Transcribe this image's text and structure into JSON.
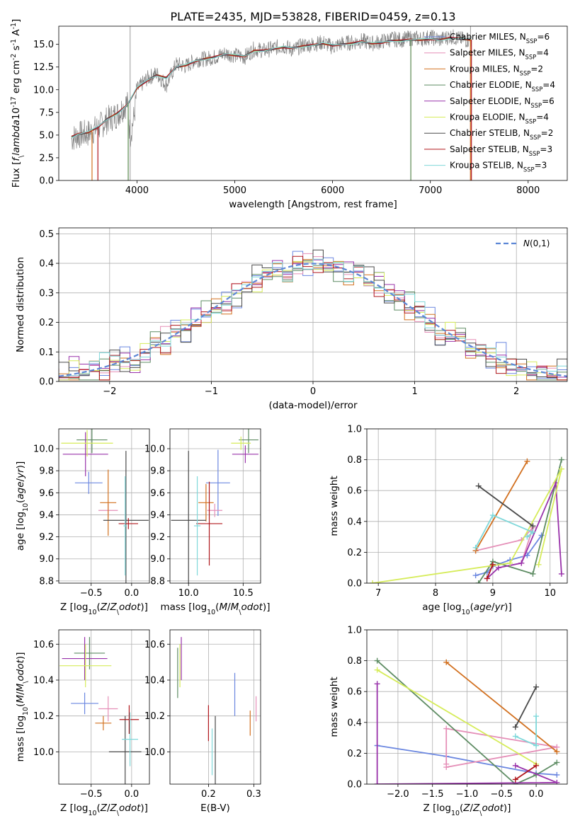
{
  "figure": {
    "title": "PLATE=2435, MJD=53828, FIBERID=0459, z=0.13"
  },
  "models": [
    {
      "label": "Chabrier MILES, N$_{SSP}$=6",
      "color": "#6b87e0"
    },
    {
      "label": "Salpeter MILES, N$_{SSP}$=4",
      "color": "#e58fb8"
    },
    {
      "label": "Kroupa MILES, N$_{SSP}$=2",
      "color": "#d2701f"
    },
    {
      "label": "Chabrier ELODIE, N$_{SSP}$=4",
      "color": "#5e8c63"
    },
    {
      "label": "Salpeter ELODIE, N$_{SSP}$=6",
      "color": "#9932aa"
    },
    {
      "label": "Kroupa ELODIE, N$_{SSP}$=4",
      "color": "#d6ec5a"
    },
    {
      "label": "Chabrier STELIB, N$_{SSP}$=2",
      "color": "#4a4a4a"
    },
    {
      "label": "Salpeter STELIB, N$_{SSP}$=3",
      "color": "#b0171c"
    },
    {
      "label": "Kroupa STELIB, N$_{SSP}$=3",
      "color": "#7fd8da"
    }
  ],
  "chart_data": [
    {
      "id": "spectrum",
      "type": "line",
      "xlabel": "wavelength [Angstrom, rest frame]",
      "ylabel": "Flux [$f_\\lambda$$10^{-17}$ erg cm$^{-2}$ s$^{-1}$ A$^{-1}$]",
      "xlim": [
        3200,
        8400
      ],
      "ylim": [
        0,
        17
      ],
      "xticks": [
        4000,
        5000,
        6000,
        7000,
        8000
      ],
      "yticks": [
        0.0,
        2.5,
        5.0,
        7.5,
        10.0,
        12.5,
        15.0
      ],
      "grid": false,
      "legend": "top-right",
      "observed_color": "#808080",
      "observed": {
        "x": [
          3330,
          3400,
          3500,
          3600,
          3700,
          3800,
          3900,
          3930,
          3970,
          4000,
          4100,
          4200,
          4300,
          4400,
          4500,
          4600,
          4700,
          4800,
          4900,
          5000,
          5100,
          5200,
          5300,
          5400,
          5500,
          5600,
          5700,
          5800,
          5900,
          6000,
          6100,
          6200,
          6300,
          6400,
          6500,
          6600,
          6700,
          6800,
          6900,
          7000,
          7100,
          7200,
          7300,
          7420
        ],
        "y": [
          4.6,
          5.0,
          5.2,
          5.8,
          6.7,
          7.3,
          8.6,
          5.0,
          7.0,
          10.0,
          11.2,
          11.8,
          10.5,
          12.8,
          12.6,
          13.3,
          13.4,
          13.6,
          14.0,
          13.8,
          13.6,
          14.5,
          14.3,
          14.6,
          14.8,
          14.4,
          14.9,
          15.0,
          15.2,
          14.7,
          15.1,
          15.2,
          15.4,
          15.1,
          15.3,
          15.6,
          15.5,
          15.7,
          15.6,
          15.8,
          15.5,
          15.9,
          15.6,
          15.4
        ]
      },
      "model_curve": {
        "x": [
          3330,
          3400,
          3500,
          3600,
          3700,
          3800,
          3900,
          4000,
          4100,
          4200,
          4300,
          4400,
          4500,
          4600,
          4700,
          4800,
          4900,
          5000,
          5100,
          5200,
          5300,
          5400,
          5500,
          5600,
          5700,
          5800,
          5900,
          6000,
          6100,
          6200,
          6300,
          6400,
          6500,
          6600,
          6700,
          6800,
          6900,
          7000,
          7100,
          7200,
          7300,
          7420
        ],
        "y": [
          4.8,
          5.1,
          5.3,
          5.9,
          6.8,
          7.4,
          8.3,
          10.2,
          11.0,
          11.6,
          11.3,
          12.5,
          12.7,
          13.2,
          13.4,
          13.6,
          13.9,
          13.8,
          13.7,
          14.3,
          14.3,
          14.5,
          14.7,
          14.6,
          14.8,
          14.9,
          15.1,
          14.9,
          15.0,
          15.1,
          15.3,
          15.1,
          15.2,
          15.4,
          15.4,
          15.5,
          15.5,
          15.6,
          15.5,
          15.7,
          15.6,
          15.5
        ]
      },
      "curve_offsets": [
        0.05,
        -0.05,
        0.1,
        -0.1,
        0.0,
        0.08,
        -0.08,
        0.12,
        -0.12
      ],
      "range_limits": [
        {
          "model": "Salpeter STELIB, N$_{SSP}$=3",
          "x_start": 3600,
          "x_end": 7420
        },
        {
          "model": "Kroupa ELODIE, N$_{SSP}$=4",
          "x_start": 3910,
          "x_end": 6800
        },
        {
          "model": "Chabrier ELODIE, N$_{SSP}$=4",
          "x_start": 3910,
          "x_end": 6800
        },
        {
          "model": "Kroupa MILES, N$_{SSP}$=2",
          "x_start": 3540,
          "x_end": 7410
        }
      ]
    },
    {
      "id": "residuals",
      "type": "line",
      "xlabel": "(data-model)/error",
      "ylabel": "Normed distribution",
      "xlim": [
        -2.5,
        2.5
      ],
      "ylim": [
        0,
        0.52
      ],
      "xticks": [
        -2,
        -1,
        0,
        1,
        2
      ],
      "yticks": [
        0.0,
        0.1,
        0.2,
        0.3,
        0.4,
        0.5
      ],
      "grid": true,
      "legend": "top-right",
      "reference_label": "$\\mathcal{N}(0,1)$",
      "reference_color": "#5d87d6",
      "bin_width": 0.1,
      "histogram_perturbations": [
        0.02,
        -0.03,
        0.04,
        -0.02,
        0.03,
        -0.04,
        0.05,
        -0.01,
        0.02,
        -0.05,
        0.03,
        -0.02,
        0.06,
        -0.03,
        0.01,
        -0.04,
        0.02,
        0.04,
        -0.02,
        0.03,
        -0.01,
        0.05,
        -0.03,
        0.02,
        -0.06,
        0.01,
        0.03,
        -0.02,
        0.04,
        -0.01
      ]
    },
    {
      "id": "age-vs-Z",
      "type": "scatter",
      "xlabel": "Z [$\\log_{10}(Z/Z_\\odot)$]",
      "ylabel": "age  [$\\log_{10}(age/yr)$]",
      "xlim": [
        -0.9,
        0.22
      ],
      "ylim": [
        8.78,
        10.18
      ],
      "xticks": [
        -0.5,
        0.0
      ],
      "yticks": [
        8.8,
        9.0,
        9.2,
        9.4,
        9.6,
        9.8,
        10.0
      ],
      "grid": true,
      "points": [
        {
          "model": 0,
          "x": -0.53,
          "xerr": 0.17,
          "y": 9.69,
          "yerr": 0.1
        },
        {
          "model": 1,
          "x": -0.29,
          "xerr": 0.12,
          "y": 9.44,
          "yerr": 0.06
        },
        {
          "model": 2,
          "x": -0.29,
          "xerr": 0.1,
          "y": 9.51,
          "yerr": 0.3
        },
        {
          "model": 3,
          "x": -0.49,
          "xerr": 0.19,
          "y": 10.08,
          "yerr": 0.12
        },
        {
          "model": 4,
          "x": -0.57,
          "xerr": 0.28,
          "y": 9.95,
          "yerr": 0.2
        },
        {
          "model": 5,
          "x": -0.55,
          "xerr": 0.32,
          "y": 10.05,
          "yerr": 0.12
        },
        {
          "model": 6,
          "x": -0.07,
          "xerr": 0.28,
          "y": 9.35,
          "yerr": 0.63
        },
        {
          "model": 7,
          "x": -0.04,
          "xerr": 0.12,
          "y": 9.32,
          "yerr": 0.05
        },
        {
          "model": 8,
          "x": -0.08,
          "xerr": 0.02,
          "y": 9.3,
          "yerr": 0.45
        }
      ]
    },
    {
      "id": "age-vs-mass",
      "type": "scatter",
      "xlabel": "mass [$\\log_{10}(M/M_\\odot)$]",
      "ylabel": "",
      "xlim": [
        9.83,
        10.66
      ],
      "ylim": [
        8.78,
        10.18
      ],
      "xticks": [
        10.0,
        10.5
      ],
      "yticks": [
        8.8,
        9.0,
        9.2,
        9.4,
        9.6,
        9.8,
        10.0
      ],
      "grid": true,
      "points": [
        {
          "model": 0,
          "x": 10.27,
          "xerr": 0.11,
          "y": 9.69,
          "yerr": 0.3
        },
        {
          "model": 1,
          "x": 10.24,
          "xerr": 0.07,
          "y": 9.44,
          "yerr": 0.06
        },
        {
          "model": 2,
          "x": 10.16,
          "xerr": 0.07,
          "y": 9.51,
          "yerr": 0.17
        },
        {
          "model": 3,
          "x": 10.55,
          "xerr": 0.09,
          "y": 10.08,
          "yerr": 0.12
        },
        {
          "model": 4,
          "x": 10.52,
          "xerr": 0.12,
          "y": 9.95,
          "yerr": 0.08
        },
        {
          "model": 5,
          "x": 10.48,
          "xerr": 0.09,
          "y": 10.05,
          "yerr": 0.06
        },
        {
          "model": 6,
          "x": 10.0,
          "xerr": 0.16,
          "y": 9.35,
          "yerr": 0.63
        },
        {
          "model": 7,
          "x": 10.19,
          "xerr": 0.12,
          "y": 9.32,
          "yerr": 0.38
        },
        {
          "model": 8,
          "x": 10.08,
          "xerr": 0.03,
          "y": 9.3,
          "yerr": 0.45
        }
      ]
    },
    {
      "id": "weights-vs-age",
      "type": "line",
      "xlabel": "age  [$\\log_{10}(age/yr)$]",
      "ylabel": "mass weight",
      "xlim": [
        6.8,
        10.3
      ],
      "ylim": [
        0,
        1.0
      ],
      "xticks": [
        7,
        8,
        9,
        10
      ],
      "yticks": [
        0.0,
        0.2,
        0.4,
        0.6,
        0.8,
        1.0
      ],
      "grid": true,
      "series": [
        {
          "model": 0,
          "x": [
            8.7,
            8.9,
            9.0,
            9.3,
            9.6,
            9.85
          ],
          "y": [
            0.05,
            0.07,
            0.11,
            0.15,
            0.18,
            0.31
          ]
        },
        {
          "model": 1,
          "x": [
            8.7,
            9.5,
            9.7,
            9.5
          ],
          "y": [
            0.21,
            0.28,
            0.36,
            0.13
          ]
        },
        {
          "model": 2,
          "x": [
            8.7,
            9.6
          ],
          "y": [
            0.21,
            0.79
          ]
        },
        {
          "model": 3,
          "x": [
            8.75,
            9.0,
            9.7,
            10.2
          ],
          "y": [
            0.0,
            0.14,
            0.06,
            0.8
          ]
        },
        {
          "model": 4,
          "x": [
            8.9,
            9.1,
            9.5,
            10.1,
            10.2
          ],
          "y": [
            0.03,
            0.1,
            0.13,
            0.65,
            0.06
          ]
        },
        {
          "model": 5,
          "x": [
            6.9,
            9.3,
            10.2,
            9.8
          ],
          "y": [
            0.0,
            0.13,
            0.74,
            0.12
          ]
        },
        {
          "model": 6,
          "x": [
            8.75,
            9.7
          ],
          "y": [
            0.63,
            0.37
          ]
        },
        {
          "model": 7,
          "x": [
            8.9,
            9.0
          ],
          "y": [
            0.03,
            0.12
          ]
        },
        {
          "model": 8,
          "x": [
            8.7,
            9.0,
            9.7,
            9.6
          ],
          "y": [
            0.23,
            0.44,
            0.33,
            0.3
          ]
        }
      ]
    },
    {
      "id": "mass-vs-Z",
      "type": "scatter",
      "xlabel": "Z [$\\log_{10}(Z/Z_\\odot)$]",
      "ylabel": "mass [$\\log_{10}(M/M_\\odot)$]",
      "xlim": [
        -0.9,
        0.22
      ],
      "ylim": [
        9.82,
        10.68
      ],
      "xticks": [
        -0.5,
        0.0
      ],
      "yticks": [
        10.0,
        10.2,
        10.4,
        10.6
      ],
      "grid": true,
      "points": [
        {
          "model": 0,
          "x": -0.58,
          "xerr": 0.17,
          "y": 10.27,
          "yerr": 0.06
        },
        {
          "model": 1,
          "x": -0.29,
          "xerr": 0.12,
          "y": 10.24,
          "yerr": 0.07
        },
        {
          "model": 2,
          "x": -0.35,
          "xerr": 0.1,
          "y": 10.16,
          "yerr": 0.04
        },
        {
          "model": 3,
          "x": -0.52,
          "xerr": 0.19,
          "y": 10.55,
          "yerr": 0.09
        },
        {
          "model": 4,
          "x": -0.58,
          "xerr": 0.28,
          "y": 10.52,
          "yerr": 0.12
        },
        {
          "model": 5,
          "x": -0.57,
          "xerr": 0.32,
          "y": 10.48,
          "yerr": 0.12
        },
        {
          "model": 6,
          "x": -0.08,
          "xerr": 0.2,
          "y": 10.0,
          "yerr": 0.2
        },
        {
          "model": 7,
          "x": -0.03,
          "xerr": 0.12,
          "y": 10.18,
          "yerr": 0.08
        },
        {
          "model": 8,
          "x": -0.02,
          "xerr": 0.1,
          "y": 10.07,
          "yerr": 0.15
        }
      ]
    },
    {
      "id": "mass-vs-EBV",
      "type": "scatter",
      "xlabel": "E(B-V)",
      "ylabel": "",
      "xlim": [
        0.115,
        0.315
      ],
      "ylim": [
        9.82,
        10.68
      ],
      "xticks": [
        0.1,
        0.2,
        0.3
      ],
      "yticks": [
        10.0,
        10.2,
        10.4,
        10.6
      ],
      "grid": true,
      "points": [
        {
          "model": 0,
          "x": 0.258,
          "y": 10.32,
          "yerr": 0.12
        },
        {
          "model": 1,
          "x": 0.305,
          "y": 10.24,
          "yerr": 0.07
        },
        {
          "model": 2,
          "x": 0.292,
          "y": 10.16,
          "yerr": 0.07
        },
        {
          "model": 3,
          "x": 0.132,
          "y": 10.44,
          "yerr": 0.14
        },
        {
          "model": 4,
          "x": 0.14,
          "y": 10.52,
          "yerr": 0.12
        },
        {
          "model": 5,
          "x": 0.137,
          "y": 10.48,
          "yerr": 0.12
        },
        {
          "model": 6,
          "x": 0.215,
          "y": 10.0,
          "yerr": 0.2
        },
        {
          "model": 7,
          "x": 0.2,
          "y": 10.16,
          "yerr": 0.1
        },
        {
          "model": 8,
          "x": 0.208,
          "y": 10.0,
          "yerr": 0.13
        }
      ]
    },
    {
      "id": "weights-vs-Z",
      "type": "line",
      "xlabel": "Z [$\\log_{10}(Z/Z_\\odot)$]",
      "ylabel": "mass weight",
      "xlim": [
        -2.45,
        0.45
      ],
      "ylim": [
        0,
        1.0
      ],
      "xticks": [
        -2.0,
        -1.5,
        -1.0,
        -0.5,
        0.0
      ],
      "yticks": [
        0.0,
        0.2,
        0.4,
        0.6,
        0.8,
        1.0
      ],
      "grid": true,
      "series": [
        {
          "model": 0,
          "x": [
            -2.3,
            -1.3,
            0.0,
            0.3
          ],
          "y": [
            0.25,
            0.18,
            0.07,
            0.06
          ]
        },
        {
          "model": 1,
          "x": [
            -1.3,
            0.3,
            -1.3,
            -1.3
          ],
          "y": [
            0.11,
            0.24,
            0.36,
            0.13
          ]
        },
        {
          "model": 2,
          "x": [
            -1.3,
            0.3
          ],
          "y": [
            0.79,
            0.21
          ]
        },
        {
          "model": 3,
          "x": [
            -2.3,
            -0.3,
            0.0,
            0.3
          ],
          "y": [
            0.8,
            0.0,
            0.06,
            0.14
          ]
        },
        {
          "model": 4,
          "x": [
            -2.3,
            -2.3,
            0.3,
            -0.3
          ],
          "y": [
            0.65,
            0.0,
            0.01,
            0.12
          ]
        },
        {
          "model": 5,
          "x": [
            -2.3,
            0.0
          ],
          "y": [
            0.74,
            0.13
          ]
        },
        {
          "model": 6,
          "x": [
            -0.3,
            0.0
          ],
          "y": [
            0.37,
            0.63
          ]
        },
        {
          "model": 7,
          "x": [
            -0.3,
            0.0
          ],
          "y": [
            0.03,
            0.12
          ]
        },
        {
          "model": 8,
          "x": [
            -0.3,
            0.0,
            0.0
          ],
          "y": [
            0.31,
            0.25,
            0.44
          ]
        }
      ]
    }
  ]
}
